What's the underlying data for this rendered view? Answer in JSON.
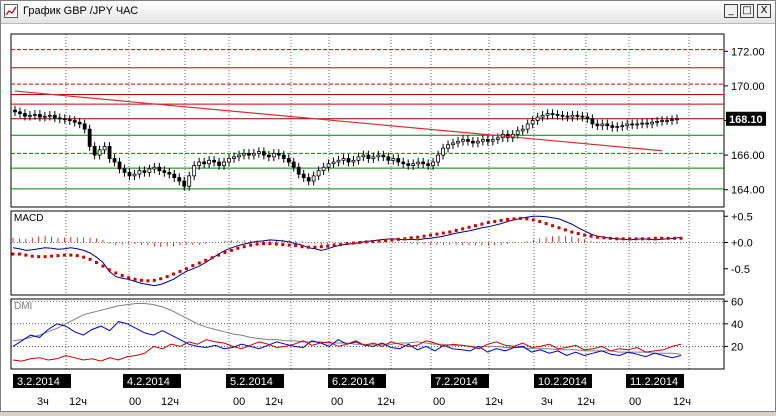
{
  "window": {
    "title": "График GBP /JPY  ЧАС",
    "icon": "chart-line-icon",
    "buttons": {
      "minimize": "_",
      "maximize": "□",
      "close": "X"
    }
  },
  "colors": {
    "candle": "#000000",
    "trendline": "#cc3333",
    "support": "#008000",
    "resistance": "#cc0000",
    "macd_line": "#000080",
    "macd_signal": "#cc0000",
    "dmi_adx": "#808080",
    "dmi_plus": "#0000cc",
    "dmi_minus": "#cc0000",
    "price_marker_bg": "#000000",
    "date_label_bg": "#000000"
  },
  "price_panel": {
    "axis_ticks": [
      "172.00",
      "170.00",
      "168.00",
      "166.00",
      "164.00"
    ],
    "current_price": "168.10"
  },
  "macd_panel": {
    "label": "MACD",
    "axis_ticks": [
      "+0.5",
      "+0.0",
      "-0.5"
    ]
  },
  "dmi_panel": {
    "label": "DMI",
    "axis_ticks": [
      "60",
      "40",
      "20"
    ]
  },
  "dates": [
    "3.2.2014",
    "4.2.2014",
    "5.2.2014",
    "6.2.2014",
    "7.2.2014",
    "10.2.2014",
    "11.2.2014"
  ],
  "hour_labels": [
    "3ч",
    "12ч",
    "00",
    "12ч",
    "00",
    "12ч",
    "00",
    "12ч",
    "00",
    "12ч",
    "3ч",
    "12ч",
    "00",
    "12ч"
  ],
  "chart_data": [
    {
      "type": "candlestick",
      "title": "График GBP /JPY  ЧАС",
      "ylim": [
        163,
        173
      ],
      "y_ticks": [
        164,
        166,
        168,
        170,
        172
      ],
      "x_ticks": [
        "3.2.2014",
        "4.2.2014",
        "5.2.2014",
        "6.2.2014",
        "7.2.2014",
        "10.2.2014",
        "11.2.2014"
      ],
      "horizontal_levels": [
        {
          "value": 172.1,
          "color": "#cc0000",
          "style": "dashed"
        },
        {
          "value": 171.05,
          "color": "#cc0000",
          "style": "solid"
        },
        {
          "value": 170.1,
          "color": "#cc0000",
          "style": "dashed"
        },
        {
          "value": 169.5,
          "color": "#cc0000",
          "style": "solid"
        },
        {
          "value": 168.95,
          "color": "#cc0000",
          "style": "solid"
        },
        {
          "value": 168.1,
          "color": "#880000",
          "style": "solid"
        },
        {
          "value": 167.15,
          "color": "#008000",
          "style": "solid"
        },
        {
          "value": 166.1,
          "color": "#008000",
          "style": "dashed"
        },
        {
          "value": 165.25,
          "color": "#008000",
          "style": "solid"
        },
        {
          "value": 164.05,
          "color": "#008000",
          "style": "solid"
        }
      ],
      "trendline": {
        "start": [
          0,
          169.7
        ],
        "end": [
          130,
          166.25
        ]
      },
      "current_price": 168.1,
      "close": [
        168.5,
        168.4,
        168.25,
        168.3,
        168.35,
        168.2,
        168.25,
        168.3,
        168.15,
        168.1,
        168.05,
        168.0,
        167.9,
        167.8,
        167.5,
        166.5,
        166.0,
        166.3,
        166.5,
        165.8,
        165.6,
        165.2,
        165.0,
        164.8,
        164.9,
        165.1,
        165.0,
        165.2,
        165.3,
        165.1,
        165.0,
        164.9,
        164.7,
        164.5,
        164.2,
        164.8,
        165.4,
        165.6,
        165.5,
        165.7,
        165.6,
        165.4,
        165.6,
        165.8,
        165.9,
        166.0,
        166.1,
        166.0,
        166.1,
        166.2,
        166.0,
        165.9,
        166.1,
        166.0,
        165.8,
        165.6,
        165.3,
        164.9,
        164.7,
        164.5,
        164.8,
        165.1,
        165.3,
        165.5,
        165.6,
        165.7,
        165.8,
        165.6,
        165.7,
        165.9,
        166.0,
        165.8,
        165.9,
        166.0,
        165.9,
        165.7,
        165.8,
        165.6,
        165.5,
        165.4,
        165.5,
        165.6,
        165.5,
        165.4,
        165.6,
        166.0,
        166.4,
        166.6,
        166.7,
        166.8,
        166.9,
        166.8,
        166.7,
        166.8,
        166.9,
        166.8,
        166.9,
        167.0,
        167.2,
        167.0,
        167.2,
        167.4,
        167.5,
        167.8,
        168.0,
        168.2,
        168.3,
        168.4,
        168.35,
        168.3,
        168.25,
        168.2,
        168.3,
        168.25,
        168.2,
        168.1,
        167.8,
        167.7,
        167.8,
        167.7,
        167.6,
        167.65,
        167.7,
        167.8,
        167.75,
        167.8,
        167.85,
        167.8,
        167.9,
        167.95,
        168.0,
        168.0,
        168.05,
        168.1
      ]
    },
    {
      "type": "line",
      "title": "MACD",
      "ylim": [
        -1.0,
        0.6
      ],
      "y_ticks": [
        0.5,
        0.0,
        -0.5
      ],
      "series": [
        {
          "name": "MACD",
          "values": [
            -0.1,
            -0.12,
            -0.15,
            -0.14,
            -0.12,
            -0.1,
            -0.11,
            -0.13,
            -0.12,
            -0.1,
            -0.12,
            -0.15,
            -0.2,
            -0.28,
            -0.38,
            -0.55,
            -0.65,
            -0.68,
            -0.7,
            -0.74,
            -0.78,
            -0.8,
            -0.82,
            -0.8,
            -0.75,
            -0.7,
            -0.62,
            -0.55,
            -0.5,
            -0.45,
            -0.38,
            -0.3,
            -0.22,
            -0.15,
            -0.1,
            -0.06,
            -0.03,
            0.0,
            0.02,
            0.03,
            0.05,
            0.04,
            0.03,
            0.01,
            -0.02,
            -0.05,
            -0.1,
            -0.12,
            -0.15,
            -0.12,
            -0.08,
            -0.05,
            -0.03,
            -0.02,
            0.0,
            0.02,
            0.03,
            0.05,
            0.06,
            0.07,
            0.06,
            0.05,
            0.06,
            0.05,
            0.07,
            0.08,
            0.1,
            0.12,
            0.15,
            0.18,
            0.2,
            0.22,
            0.25,
            0.28,
            0.3,
            0.33,
            0.36,
            0.4,
            0.43,
            0.46,
            0.48,
            0.5,
            0.5,
            0.49,
            0.47,
            0.45,
            0.4,
            0.35,
            0.28,
            0.22,
            0.16,
            0.12,
            0.1,
            0.08,
            0.07,
            0.06,
            0.05,
            0.06,
            0.07,
            0.06,
            0.05,
            0.06,
            0.07,
            0.08,
            0.1
          ]
        },
        {
          "name": "Signal",
          "values": [
            -0.22,
            -0.22,
            -0.24,
            -0.26,
            -0.27,
            -0.27,
            -0.26,
            -0.25,
            -0.24,
            -0.24,
            -0.25,
            -0.28,
            -0.32,
            -0.38,
            -0.45,
            -0.52,
            -0.58,
            -0.63,
            -0.67,
            -0.7,
            -0.72,
            -0.73,
            -0.72,
            -0.69,
            -0.65,
            -0.6,
            -0.55,
            -0.5,
            -0.44,
            -0.39,
            -0.34,
            -0.29,
            -0.24,
            -0.19,
            -0.15,
            -0.11,
            -0.08,
            -0.05,
            -0.03,
            -0.02,
            -0.02,
            -0.03,
            -0.04,
            -0.05,
            -0.06,
            -0.08,
            -0.09,
            -0.09,
            -0.08,
            -0.07,
            -0.05,
            -0.04,
            -0.02,
            -0.01,
            0.0,
            0.01,
            0.02,
            0.03,
            0.04,
            0.05,
            0.06,
            0.07,
            0.09,
            0.1,
            0.12,
            0.14,
            0.16,
            0.18,
            0.2,
            0.23,
            0.26,
            0.29,
            0.32,
            0.35,
            0.38,
            0.4,
            0.42,
            0.44,
            0.45,
            0.46,
            0.45,
            0.43,
            0.4,
            0.36,
            0.32,
            0.28,
            0.24,
            0.2,
            0.17,
            0.14,
            0.12,
            0.1,
            0.09,
            0.08,
            0.07,
            0.07,
            0.07,
            0.07,
            0.07,
            0.07,
            0.08,
            0.08,
            0.08,
            0.08,
            0.08
          ]
        }
      ]
    },
    {
      "type": "line",
      "title": "DMI",
      "ylim": [
        0,
        62
      ],
      "y_ticks": [
        60,
        40,
        20
      ],
      "series": [
        {
          "name": "ADX",
          "values": [
            25,
            26,
            28,
            30,
            33,
            36,
            40,
            44,
            48,
            50,
            52,
            54,
            56,
            57,
            58,
            58,
            57,
            55,
            52,
            48,
            44,
            40,
            37,
            35,
            33,
            31,
            30,
            28,
            27,
            26,
            26,
            25,
            25,
            24,
            24,
            24,
            23,
            23,
            23,
            22,
            22,
            22,
            22,
            22,
            23,
            23,
            24,
            23,
            22,
            22,
            21,
            21,
            20,
            20,
            20,
            20,
            19,
            19,
            19,
            18,
            18,
            18,
            17,
            17,
            17,
            16,
            16,
            16,
            16,
            15,
            15,
            15,
            15,
            14,
            14,
            14,
            13
          ]
        },
        {
          "name": "+DI",
          "values": [
            20,
            25,
            30,
            28,
            35,
            40,
            38,
            33,
            30,
            35,
            38,
            34,
            42,
            40,
            36,
            32,
            30,
            34,
            30,
            26,
            22,
            20,
            19,
            21,
            18,
            19,
            22,
            20,
            18,
            21,
            24,
            22,
            20,
            19,
            25,
            23,
            20,
            26,
            22,
            24,
            21,
            20,
            23,
            19,
            18,
            22,
            17,
            20,
            16,
            21,
            18,
            17,
            16,
            20,
            15,
            18,
            16,
            19,
            20,
            15,
            17,
            14,
            16,
            12,
            15,
            12,
            14,
            16,
            13,
            12,
            15,
            13,
            11,
            14,
            12,
            10,
            12
          ]
        },
        {
          "name": "-DI",
          "values": [
            8,
            7,
            9,
            10,
            8,
            9,
            12,
            10,
            8,
            9,
            7,
            10,
            8,
            11,
            12,
            14,
            20,
            18,
            22,
            20,
            24,
            22,
            26,
            24,
            23,
            20,
            18,
            21,
            24,
            22,
            19,
            20,
            22,
            25,
            21,
            23,
            24,
            20,
            22,
            25,
            21,
            23,
            20,
            24,
            22,
            20,
            21,
            25,
            23,
            20,
            22,
            21,
            20,
            18,
            22,
            24,
            21,
            20,
            23,
            19,
            20,
            22,
            18,
            19,
            21,
            17,
            18,
            20,
            16,
            18,
            17,
            19,
            15,
            16,
            17,
            20,
            22
          ]
        }
      ]
    }
  ]
}
